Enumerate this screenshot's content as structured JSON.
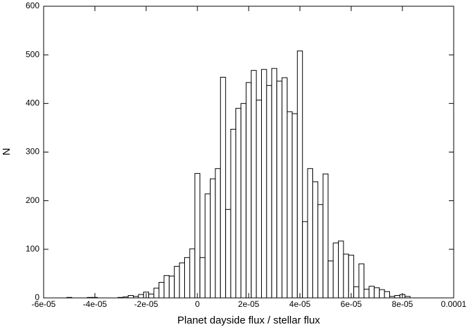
{
  "chart_data": {
    "type": "histogram",
    "xlabel": "Planet dayside flux / stellar flux",
    "ylabel": "N",
    "bins": [
      -5.1e-05,
      -4.9e-05,
      -4.7e-05,
      -4.5e-05,
      -4.3e-05,
      -4.1e-05,
      -3.9e-05,
      -3.7e-05,
      -3.5e-05,
      -3.3e-05,
      -3.1e-05,
      -2.9e-05,
      -2.7e-05,
      -2.5e-05,
      -2.3e-05,
      -2.1e-05,
      -1.9e-05,
      -1.7e-05,
      -1.5e-05,
      -1.3e-05,
      -1.1e-05,
      -9e-06,
      -7e-06,
      -5e-06,
      -3e-06,
      -1e-06,
      1e-06,
      3e-06,
      5e-06,
      7e-06,
      9e-06,
      1.1e-05,
      1.3e-05,
      1.5e-05,
      1.7e-05,
      1.9e-05,
      2.1e-05,
      2.3e-05,
      2.5e-05,
      2.7e-05,
      2.9e-05,
      3.1e-05,
      3.3e-05,
      3.5e-05,
      3.7e-05,
      3.9e-05,
      4.1e-05,
      4.3e-05,
      4.5e-05,
      4.7e-05,
      4.9e-05,
      5.1e-05,
      5.3e-05,
      5.5e-05,
      5.7e-05,
      5.9e-05,
      6.1e-05,
      6.3e-05,
      6.5e-05,
      6.7e-05,
      6.9e-05,
      7.1e-05,
      7.3e-05,
      7.5e-05,
      7.7e-05,
      7.9e-05,
      8.1e-05,
      8.3e-05
    ],
    "values": [
      1,
      0,
      0,
      0,
      1,
      1,
      0,
      0,
      0,
      0,
      1,
      2,
      5,
      3,
      7,
      12,
      8,
      20,
      32,
      46,
      45,
      65,
      72,
      83,
      101,
      256,
      83,
      214,
      245,
      266,
      454,
      182,
      347,
      390,
      400,
      443,
      468,
      407,
      470,
      437,
      472,
      446,
      453,
      383,
      379,
      508,
      157,
      266,
      239,
      192,
      255,
      76,
      113,
      117,
      90,
      88,
      23,
      70,
      18,
      24,
      21,
      17,
      13,
      3,
      5,
      7,
      3
    ],
    "color": "#ffffff",
    "edgecolor": "#000000",
    "xlim": [
      -6e-05,
      0.0001
    ],
    "xticks": [
      {
        "value": -6e-05,
        "label": "-6e-05"
      },
      {
        "value": -4e-05,
        "label": "-4e-05"
      },
      {
        "value": -2e-05,
        "label": "-2e-05"
      },
      0,
      {
        "value": 2e-05,
        "label": "2e-05"
      },
      {
        "value": 4e-05,
        "label": "4e-05"
      },
      {
        "value": 6e-05,
        "label": "6e-05"
      },
      {
        "value": 8e-05,
        "label": "8e-05"
      },
      0.0001
    ],
    "ylim": [
      0,
      600
    ],
    "yticks": [
      0,
      100,
      200,
      300,
      400,
      500,
      600
    ],
    "grid": false
  }
}
